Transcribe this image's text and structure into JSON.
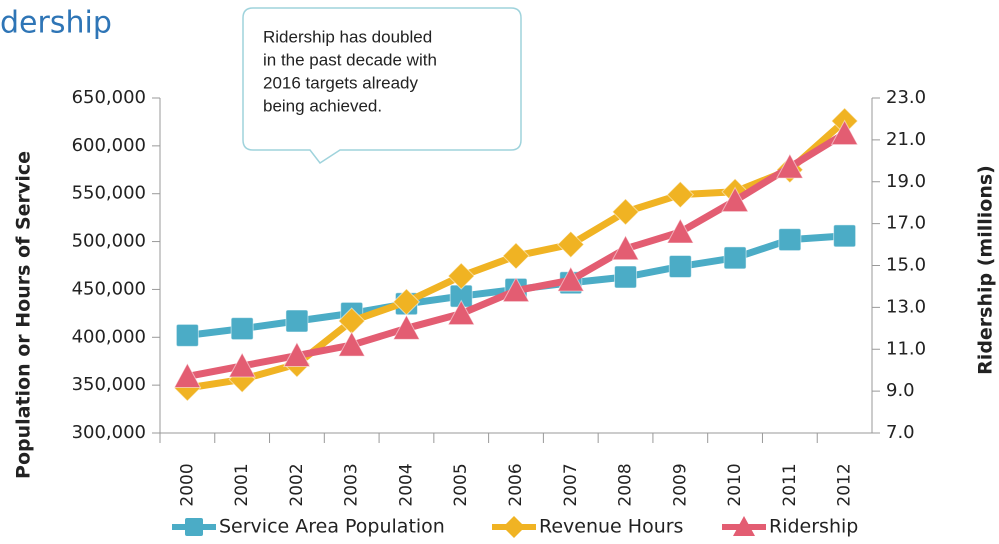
{
  "chart_data": {
    "type": "line",
    "title": "dership",
    "annotation": [
      "Ridership has doubled",
      "in the past decade with",
      "2016 targets already",
      "being achieved."
    ],
    "ylabel": "Population or Hours of Service",
    "y2label": "Ridership (millions)",
    "categories": [
      "2000",
      "2001",
      "2002",
      "2003",
      "2004",
      "2005",
      "2006",
      "2007",
      "2008",
      "2009",
      "2010",
      "2011",
      "2012"
    ],
    "ylim": [
      300000,
      650000
    ],
    "yticks": [
      {
        "value": 300000,
        "label": "300,000"
      },
      {
        "value": 350000,
        "label": "350,000"
      },
      {
        "value": 400000,
        "label": "400,000"
      },
      {
        "value": 450000,
        "label": "450,000"
      },
      {
        "value": 500000,
        "label": "500,000"
      },
      {
        "value": 550000,
        "label": "550,000"
      },
      {
        "value": 600000,
        "label": "600,000"
      },
      {
        "value": 650000,
        "label": "650,000"
      }
    ],
    "y2lim": [
      7,
      23
    ],
    "y2ticks": [
      {
        "value": 7,
        "label": "7.0"
      },
      {
        "value": 9,
        "label": "9.0"
      },
      {
        "value": 11,
        "label": "11.0"
      },
      {
        "value": 13,
        "label": "13.0"
      },
      {
        "value": 15,
        "label": "15.0"
      },
      {
        "value": 17,
        "label": "17.0"
      },
      {
        "value": 19,
        "label": "19.0"
      },
      {
        "value": 21,
        "label": "21.0"
      },
      {
        "value": 23,
        "label": "23.0"
      }
    ],
    "legend": "bottom",
    "series": [
      {
        "name": "Service Area Population",
        "color": "#4bacc6",
        "marker": "square",
        "values": [
          402000,
          409000,
          417000,
          425000,
          435000,
          443000,
          450000,
          457000,
          463000,
          474000,
          483000,
          502000,
          506000
        ]
      },
      {
        "name": "Revenue Hours",
        "color": "#f0b323",
        "marker": "diamond",
        "values": [
          347000,
          356000,
          372000,
          417000,
          437000,
          464000,
          485000,
          497000,
          531000,
          549000,
          552000,
          575000,
          626000
        ]
      },
      {
        "name": "Ridership",
        "color": "#e35d72",
        "marker": "triangle",
        "axis": "y2",
        "values": [
          9.7,
          10.2,
          10.7,
          11.2,
          12.0,
          12.7,
          13.8,
          14.3,
          15.8,
          16.6,
          18.1,
          19.7,
          21.3
        ]
      }
    ]
  }
}
